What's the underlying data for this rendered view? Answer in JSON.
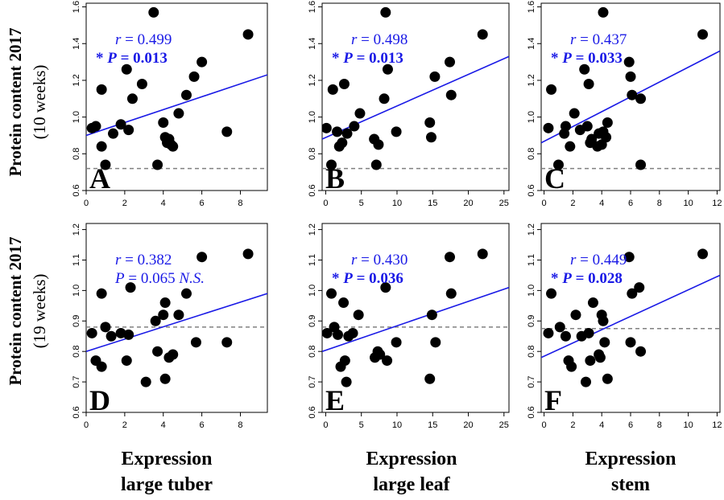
{
  "row_labels": [
    {
      "main": "Protein content 2017",
      "sub": "(10 weeks)"
    },
    {
      "main": "Protein content 2017",
      "sub": "(19 weeks)"
    }
  ],
  "column_labels": [
    {
      "line1": "Expression",
      "line2": "large tuber"
    },
    {
      "line1": "Expression",
      "line2": "large leaf"
    },
    {
      "line1": "Expression",
      "line2": "stem"
    }
  ],
  "colors": {
    "points": "#000000",
    "fit_line": "#1a1ae6",
    "stats": "#1a1ae6",
    "reference_line": "#808080"
  },
  "chart_data": [
    {
      "type": "scatter",
      "panel": "A",
      "xlim": [
        0,
        9.4
      ],
      "ylim": [
        0.6,
        1.62
      ],
      "xticks": [
        0,
        2,
        4,
        6,
        8
      ],
      "yticks": [
        0.6,
        0.8,
        1.0,
        1.2,
        1.4,
        1.6
      ],
      "stat_r": "r = 0.499",
      "stat_p": "* P = 0.013",
      "reference_y": 0.72,
      "fit": {
        "y_at_xmin": 0.9,
        "y_at_xmax": 1.23
      },
      "x": [
        0.3,
        0.5,
        0.8,
        0.8,
        1.0,
        1.4,
        1.8,
        2.1,
        2.2,
        2.4,
        2.9,
        3.5,
        3.7,
        4.0,
        4.1,
        4.2,
        4.3,
        4.4,
        4.5,
        4.8,
        5.2,
        5.6,
        6.0,
        7.3,
        8.4
      ],
      "y": [
        0.94,
        0.95,
        1.15,
        0.84,
        0.74,
        0.91,
        0.96,
        1.26,
        0.93,
        1.1,
        1.18,
        1.57,
        0.74,
        0.97,
        0.89,
        0.86,
        0.88,
        0.85,
        0.84,
        1.02,
        1.12,
        1.22,
        1.3,
        0.92,
        1.45
      ]
    },
    {
      "type": "scatter",
      "panel": "B",
      "xlim": [
        -0.5,
        25.7
      ],
      "ylim": [
        0.6,
        1.62
      ],
      "xticks": [
        0,
        5,
        10,
        15,
        20,
        25
      ],
      "yticks": [
        0.6,
        0.8,
        1.0,
        1.2,
        1.4,
        1.6
      ],
      "stat_r": "r = 0.498",
      "stat_p": "* P = 0.013",
      "reference_y": 0.72,
      "fit": {
        "y_at_xmin": 0.88,
        "y_at_xmax": 1.33
      },
      "x": [
        0.1,
        0.8,
        1.0,
        1.6,
        1.9,
        2.3,
        2.6,
        3.0,
        4.0,
        4.8,
        6.8,
        7.1,
        7.4,
        8.2,
        8.4,
        8.7,
        9.9,
        14.6,
        14.8,
        15.3,
        17.4,
        17.6,
        22.0
      ],
      "y": [
        0.94,
        0.74,
        1.15,
        0.92,
        0.84,
        0.86,
        1.18,
        0.91,
        0.95,
        1.02,
        0.88,
        0.74,
        0.85,
        1.1,
        1.57,
        1.26,
        0.92,
        0.97,
        0.89,
        1.22,
        1.3,
        1.12,
        1.45
      ]
    },
    {
      "type": "scatter",
      "panel": "C",
      "xlim": [
        -0.2,
        12.2
      ],
      "ylim": [
        0.6,
        1.62
      ],
      "xticks": [
        0,
        2,
        4,
        6,
        8,
        10,
        12
      ],
      "yticks": [
        0.6,
        0.8,
        1.0,
        1.2,
        1.4,
        1.6
      ],
      "stat_r": "r = 0.437",
      "stat_p": "* P = 0.033",
      "reference_y": 0.72,
      "fit": {
        "y_at_xmin": 0.86,
        "y_at_xmax": 1.36
      },
      "x": [
        0.3,
        0.5,
        1.0,
        1.4,
        1.5,
        1.8,
        2.1,
        2.5,
        2.8,
        3.0,
        3.1,
        3.2,
        3.3,
        3.7,
        3.8,
        4.0,
        4.1,
        4.1,
        4.3,
        4.4,
        5.9,
        6.0,
        6.1,
        6.7,
        6.7,
        11.0
      ],
      "y": [
        0.94,
        1.15,
        0.74,
        0.91,
        0.95,
        0.84,
        1.02,
        0.93,
        1.26,
        0.95,
        1.18,
        0.86,
        0.88,
        0.84,
        0.91,
        0.85,
        0.92,
        1.57,
        0.89,
        0.97,
        1.3,
        1.22,
        1.12,
        0.74,
        1.1,
        1.45
      ]
    },
    {
      "type": "scatter",
      "panel": "D",
      "xlim": [
        0,
        9.4
      ],
      "ylim": [
        0.6,
        1.22
      ],
      "xticks": [
        0,
        2,
        4,
        6,
        8
      ],
      "yticks": [
        0.6,
        0.7,
        0.8,
        0.9,
        1.0,
        1.1,
        1.2
      ],
      "stat_r": "r = 0.382",
      "stat_p": "P = 0.065 N.S.",
      "reference_y": 0.88,
      "fit": {
        "y_at_xmin": 0.8,
        "y_at_xmax": 0.99
      },
      "x": [
        0.3,
        0.5,
        0.8,
        0.8,
        1.0,
        1.3,
        1.8,
        2.1,
        2.2,
        2.3,
        3.1,
        3.6,
        3.7,
        4.0,
        4.1,
        4.1,
        4.3,
        4.5,
        4.8,
        5.2,
        5.7,
        6.0,
        7.3,
        8.4
      ],
      "y": [
        0.86,
        0.77,
        0.99,
        0.75,
        0.88,
        0.85,
        0.86,
        0.77,
        0.855,
        1.01,
        0.7,
        0.9,
        0.8,
        0.92,
        0.71,
        0.96,
        0.78,
        0.79,
        0.92,
        0.99,
        0.83,
        1.11,
        0.83,
        1.12
      ]
    },
    {
      "type": "scatter",
      "panel": "E",
      "xlim": [
        -0.5,
        25.7
      ],
      "ylim": [
        0.6,
        1.22
      ],
      "xticks": [
        0,
        5,
        10,
        15,
        20,
        25
      ],
      "yticks": [
        0.6,
        0.7,
        0.8,
        0.9,
        1.0,
        1.1,
        1.2
      ],
      "stat_r": "r = 0.430",
      "stat_p": "* P = 0.036",
      "reference_y": 0.88,
      "fit": {
        "y_at_xmin": 0.8,
        "y_at_xmax": 1.01
      },
      "x": [
        0.2,
        0.8,
        1.2,
        1.7,
        2.1,
        2.5,
        2.7,
        2.9,
        3.2,
        3.8,
        4.6,
        6.9,
        7.3,
        7.6,
        8.4,
        8.6,
        9.9,
        14.6,
        14.9,
        15.4,
        17.4,
        17.6,
        22.0
      ],
      "y": [
        0.86,
        0.99,
        0.88,
        0.855,
        0.75,
        0.96,
        0.77,
        0.7,
        0.85,
        0.86,
        0.92,
        0.78,
        0.8,
        0.79,
        1.01,
        0.77,
        0.83,
        0.71,
        0.92,
        0.83,
        1.11,
        0.99,
        1.12
      ]
    },
    {
      "type": "scatter",
      "panel": "F",
      "xlim": [
        -0.2,
        12.2
      ],
      "ylim": [
        0.6,
        1.22
      ],
      "xticks": [
        0,
        2,
        4,
        6,
        8,
        10,
        12
      ],
      "yticks": [
        0.6,
        0.7,
        0.8,
        0.9,
        1.0,
        1.1,
        1.2
      ],
      "stat_r": "r = 0.449",
      "stat_p": "* P = 0.028",
      "reference_y": 0.875,
      "fit": {
        "y_at_xmin": 0.78,
        "y_at_xmax": 1.05
      },
      "x": [
        0.3,
        0.5,
        1.1,
        1.5,
        1.7,
        1.9,
        2.2,
        2.6,
        2.9,
        3.1,
        3.2,
        3.4,
        3.8,
        3.9,
        4.0,
        4.1,
        4.2,
        4.4,
        5.9,
        6.0,
        6.1,
        6.6,
        6.7,
        11.0
      ],
      "y": [
        0.86,
        0.99,
        0.88,
        0.85,
        0.77,
        0.75,
        0.92,
        0.85,
        0.7,
        0.86,
        0.77,
        0.96,
        0.79,
        0.78,
        0.92,
        0.9,
        0.83,
        0.71,
        1.11,
        0.83,
        0.99,
        1.01,
        0.8,
        1.12
      ]
    }
  ]
}
